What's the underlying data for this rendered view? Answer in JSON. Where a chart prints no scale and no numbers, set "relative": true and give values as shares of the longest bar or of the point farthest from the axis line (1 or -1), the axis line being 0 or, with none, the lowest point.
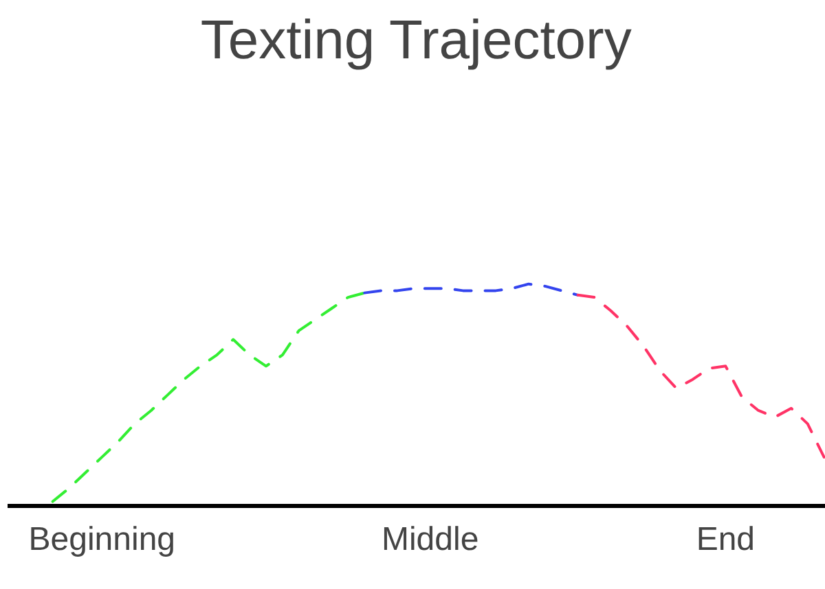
{
  "chart_data": {
    "type": "line",
    "title": "Texting Trajectory",
    "relative": true,
    "line_style": "dashed",
    "grid": false,
    "categories": [
      null,
      null,
      null,
      "Beginning",
      null,
      null,
      null,
      null,
      null,
      null,
      null,
      null,
      null,
      null,
      null,
      null,
      null,
      null,
      null,
      null,
      null,
      null,
      null,
      "Middle",
      null,
      null,
      null,
      null,
      null,
      null,
      null,
      null,
      null,
      null,
      null,
      null,
      null,
      null,
      null,
      null,
      null,
      "End",
      null,
      null,
      null,
      null,
      null,
      null
    ],
    "series": [
      {
        "color": "#33ee33",
        "values": [
          0.02,
          0.08,
          0.15,
          0.22,
          0.29,
          0.37,
          0.43,
          0.5,
          0.57,
          0.63,
          0.68,
          0.75,
          0.68,
          0.63,
          0.68,
          0.79,
          0.84,
          0.89,
          0.94,
          0.96,
          null,
          null,
          null,
          null,
          null,
          null,
          null,
          null,
          null,
          null,
          null,
          null,
          null,
          null,
          null,
          null,
          null,
          null,
          null,
          null,
          null,
          null,
          null,
          null,
          null,
          null,
          null,
          null
        ]
      },
      {
        "color": "#3344ee",
        "values": [
          null,
          null,
          null,
          null,
          null,
          null,
          null,
          null,
          null,
          null,
          null,
          null,
          null,
          null,
          null,
          null,
          null,
          null,
          null,
          0.96,
          0.97,
          0.97,
          0.98,
          0.98,
          0.98,
          0.97,
          0.97,
          0.97,
          0.98,
          1.0,
          0.99,
          0.97,
          0.95,
          null,
          null,
          null,
          null,
          null,
          null,
          null,
          null,
          null,
          null,
          null,
          null,
          null,
          null,
          null
        ]
      },
      {
        "color": "#ff3366",
        "values": [
          null,
          null,
          null,
          null,
          null,
          null,
          null,
          null,
          null,
          null,
          null,
          null,
          null,
          null,
          null,
          null,
          null,
          null,
          null,
          null,
          null,
          null,
          null,
          null,
          null,
          null,
          null,
          null,
          null,
          null,
          null,
          null,
          0.95,
          0.94,
          0.88,
          0.81,
          0.72,
          0.61,
          0.53,
          0.57,
          0.62,
          0.63,
          0.49,
          0.43,
          0.4,
          0.44,
          0.37,
          0.22
        ]
      }
    ]
  }
}
